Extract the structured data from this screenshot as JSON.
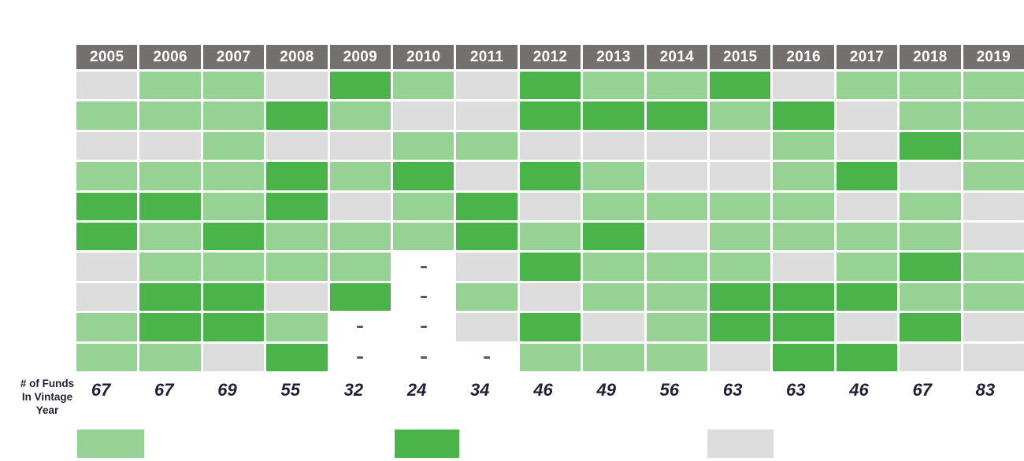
{
  "chart_data": {
    "type": "heatmap",
    "title": "",
    "columns": [
      "2005",
      "2006",
      "2007",
      "2008",
      "2009",
      "2010",
      "2011",
      "2012",
      "2013",
      "2014",
      "2015",
      "2016",
      "2017",
      "2018",
      "2019"
    ],
    "cell_states": [
      [
        "gray",
        "light",
        "light",
        "gray",
        "dark",
        "light",
        "gray",
        "dark",
        "light",
        "light",
        "dark",
        "gray",
        "light",
        "light",
        "light"
      ],
      [
        "light",
        "light",
        "light",
        "dark",
        "light",
        "gray",
        "gray",
        "dark",
        "dark",
        "dark",
        "light",
        "dark",
        "gray",
        "light",
        "light"
      ],
      [
        "gray",
        "gray",
        "light",
        "gray",
        "gray",
        "light",
        "light",
        "gray",
        "gray",
        "gray",
        "gray",
        "light",
        "gray",
        "dark",
        "light"
      ],
      [
        "light",
        "light",
        "light",
        "dark",
        "light",
        "dark",
        "gray",
        "dark",
        "light",
        "gray",
        "gray",
        "light",
        "dark",
        "gray",
        "light"
      ],
      [
        "dark",
        "dark",
        "light",
        "dark",
        "gray",
        "light",
        "dark",
        "gray",
        "light",
        "light",
        "light",
        "light",
        "gray",
        "light",
        "gray"
      ],
      [
        "dark",
        "light",
        "dark",
        "light",
        "light",
        "light",
        "dark",
        "light",
        "dark",
        "gray",
        "light",
        "light",
        "light",
        "light",
        "gray"
      ],
      [
        "gray",
        "light",
        "light",
        "light",
        "light",
        "none",
        "gray",
        "dark",
        "light",
        "light",
        "light",
        "gray",
        "light",
        "dark",
        "light"
      ],
      [
        "gray",
        "dark",
        "dark",
        "gray",
        "dark",
        "none",
        "light",
        "gray",
        "light",
        "light",
        "dark",
        "dark",
        "dark",
        "light",
        "light"
      ],
      [
        "light",
        "dark",
        "dark",
        "light",
        "none",
        "none",
        "gray",
        "dark",
        "gray",
        "light",
        "dark",
        "dark",
        "gray",
        "dark",
        "gray"
      ],
      [
        "light",
        "light",
        "gray",
        "dark",
        "none",
        "none",
        "none",
        "light",
        "light",
        "light",
        "gray",
        "dark",
        "dark",
        "gray",
        "gray"
      ]
    ],
    "empty_cell_marker": "-",
    "colors": {
      "light": "#95d293",
      "dark": "#4ab44a",
      "gray": "#dcdcdc",
      "none": "#ffffff",
      "header_bg": "#747070",
      "header_text": "#ffffff",
      "number_text": "#251e36",
      "dash": "#5a5560"
    },
    "funds_label_lines": [
      "# of Funds",
      "In Vintage",
      "Year"
    ],
    "funds_per_year": [
      67,
      67,
      69,
      55,
      32,
      24,
      34,
      46,
      49,
      56,
      63,
      63,
      46,
      67,
      83
    ],
    "legend_swatches": [
      {
        "name": "light-green-swatch",
        "color": "#95d293"
      },
      {
        "name": "dark-green-swatch",
        "color": "#4ab44a"
      },
      {
        "name": "gray-swatch",
        "color": "#dcdcdc"
      }
    ],
    "layout": {
      "legend_position": "bottom",
      "grid": "white-gaps"
    }
  }
}
